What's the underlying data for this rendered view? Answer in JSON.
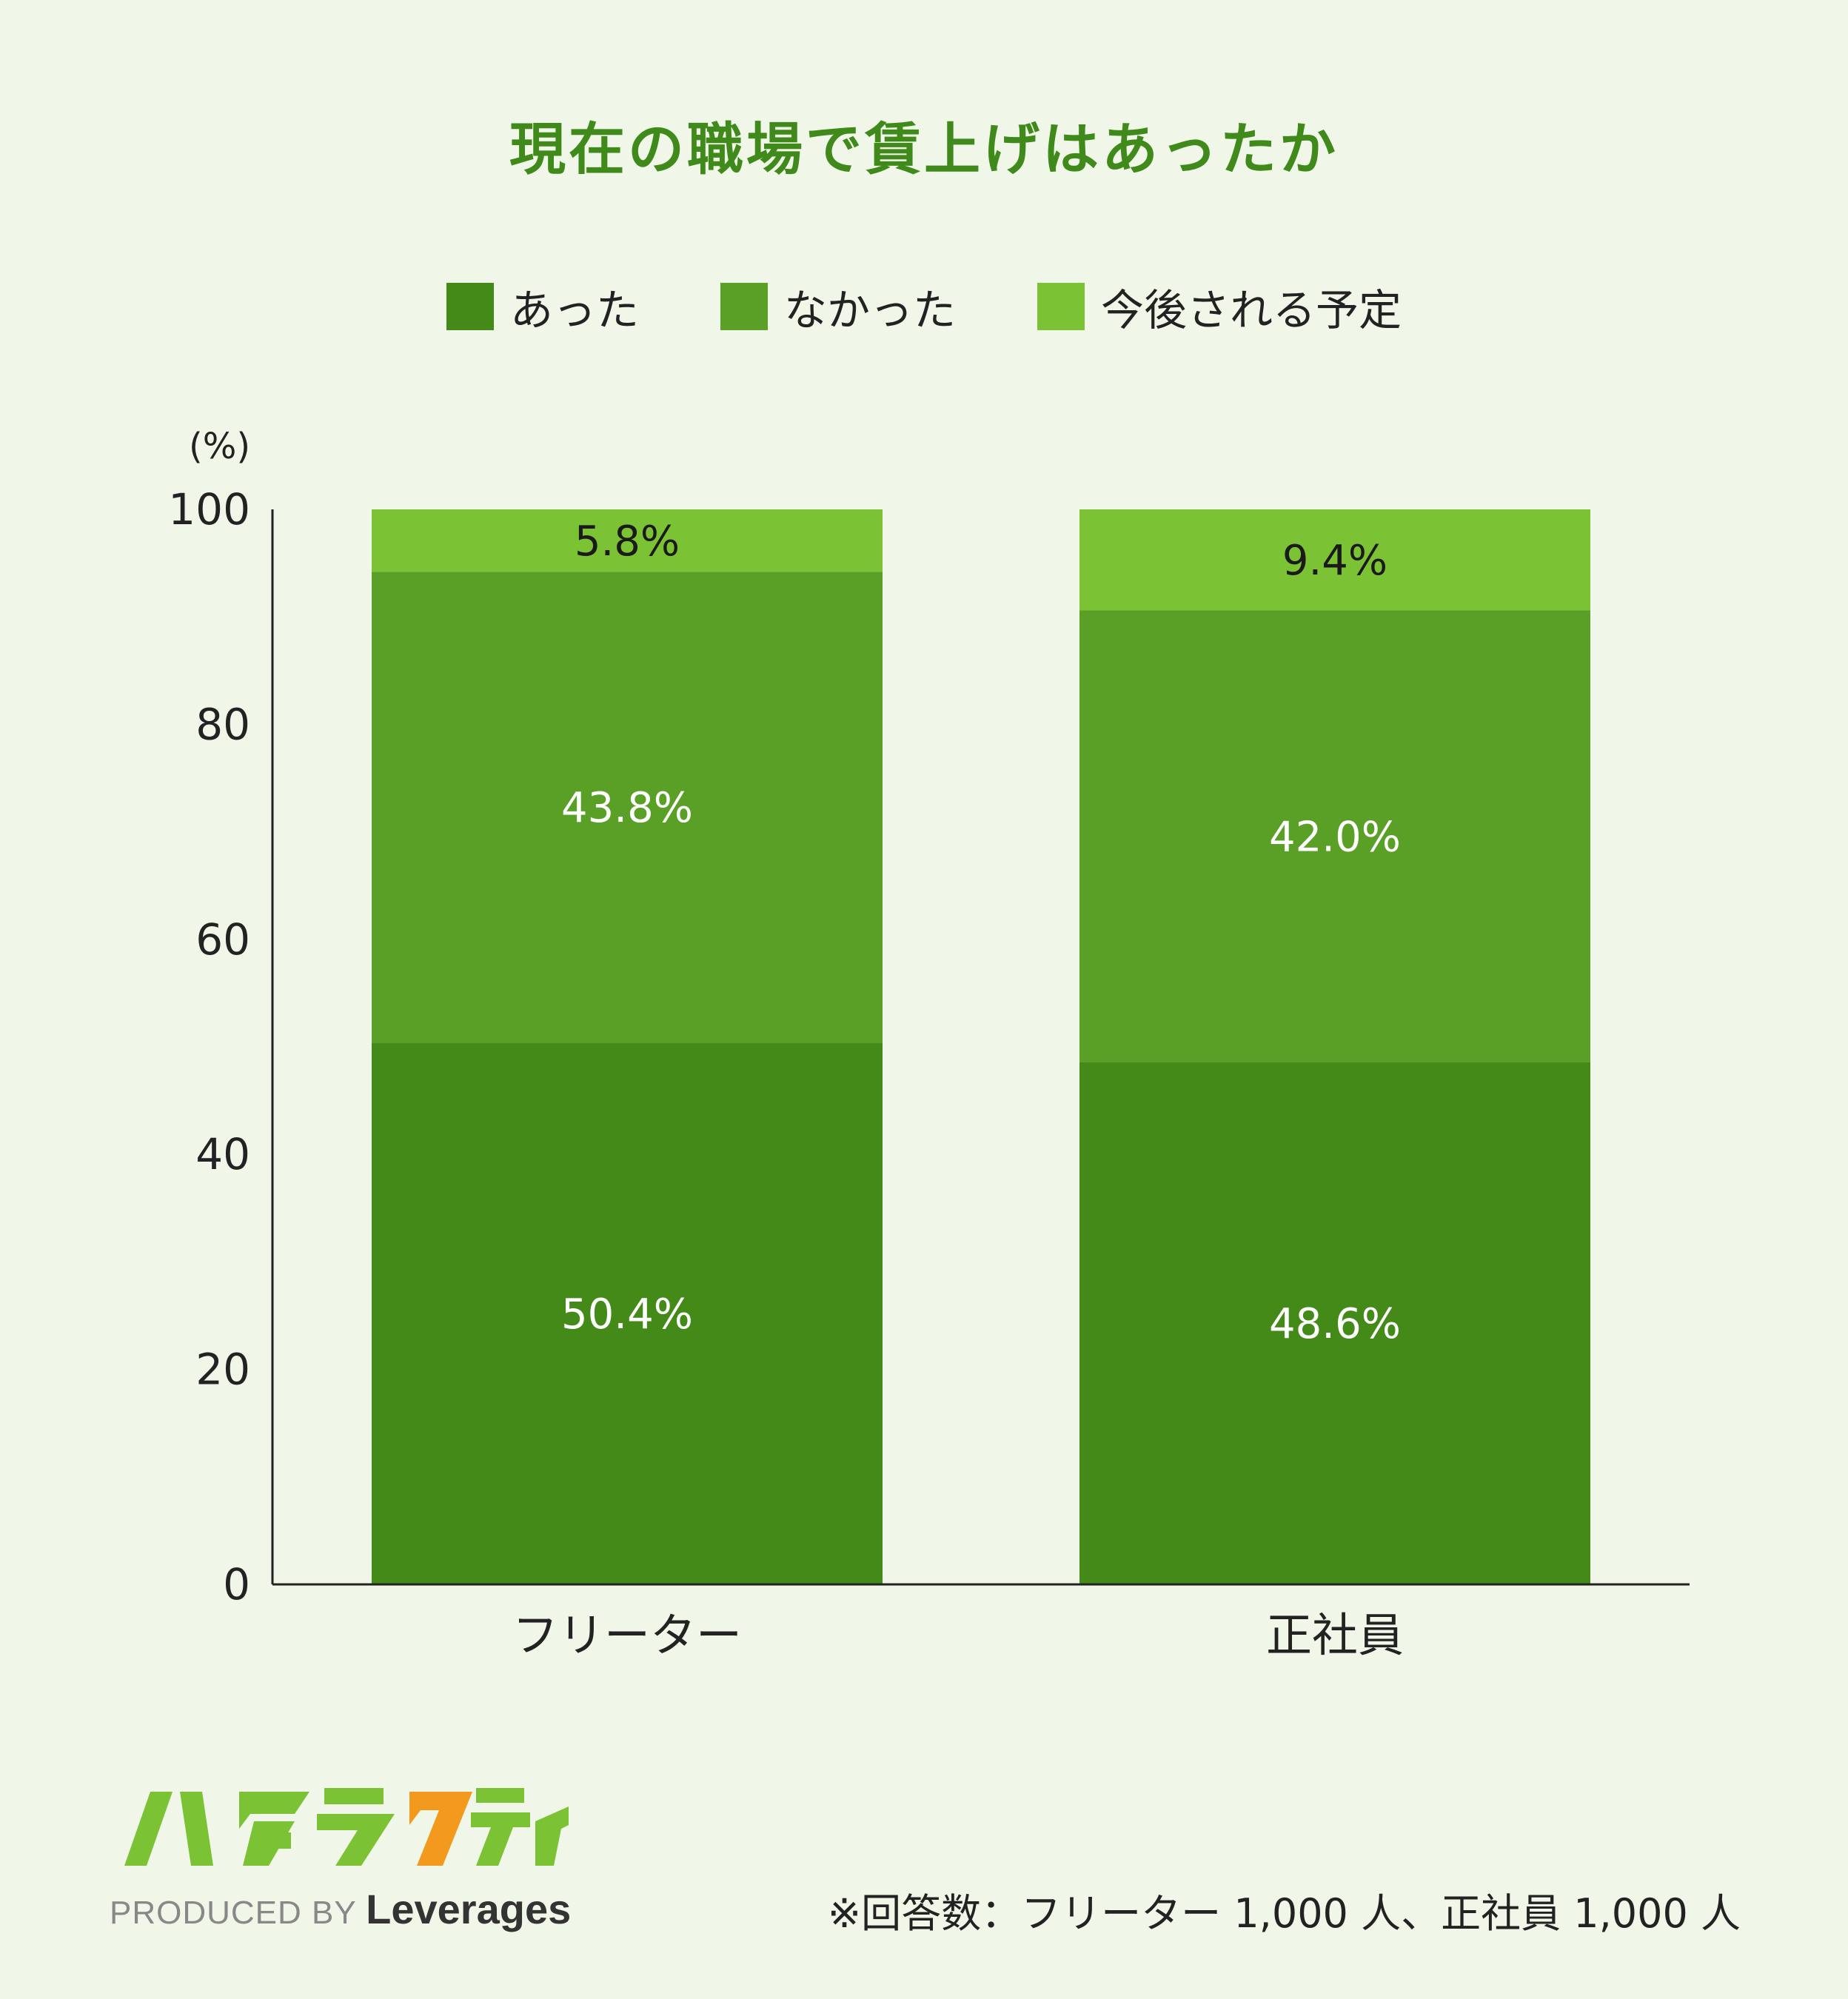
{
  "title": "現在の職場で賃上げはあったか",
  "unit_label": "(%)",
  "legend": [
    {
      "label": "あった",
      "color": "#438a18"
    },
    {
      "label": "なかった",
      "color": "#5aa027"
    },
    {
      "label": "今後される予定",
      "color": "#7cc235"
    }
  ],
  "chart_data": {
    "type": "bar",
    "stacked": true,
    "title": "現在の職場で賃上げはあったか",
    "ylabel": "(%)",
    "ylim": [
      0,
      100
    ],
    "yticks": [
      "0",
      "20",
      "40",
      "60",
      "80",
      "100"
    ],
    "categories": [
      "フリーター",
      "正社員"
    ],
    "series": [
      {
        "name": "あった",
        "values": [
          50.4,
          48.6
        ],
        "labels": [
          "50.4%",
          "48.6%"
        ],
        "color": "#438a18",
        "label_color": "#ffffff"
      },
      {
        "name": "なかった",
        "values": [
          43.8,
          42.0
        ],
        "labels": [
          "43.8%",
          "42.0%"
        ],
        "color": "#5aa027",
        "label_color": "#ffffff"
      },
      {
        "name": "今後される予定",
        "values": [
          5.8,
          9.4
        ],
        "labels": [
          "5.8%",
          "9.4%"
        ],
        "color": "#7cc235",
        "label_color": "#1a1a1a"
      }
    ],
    "grid": false
  },
  "logo": {
    "name": "ハタラクティブ",
    "produced_by": "PRODUCED BY",
    "brand": "Leverages"
  },
  "footnote": "※回答数：フリーター 1,000 人、正社員 1,000 人"
}
